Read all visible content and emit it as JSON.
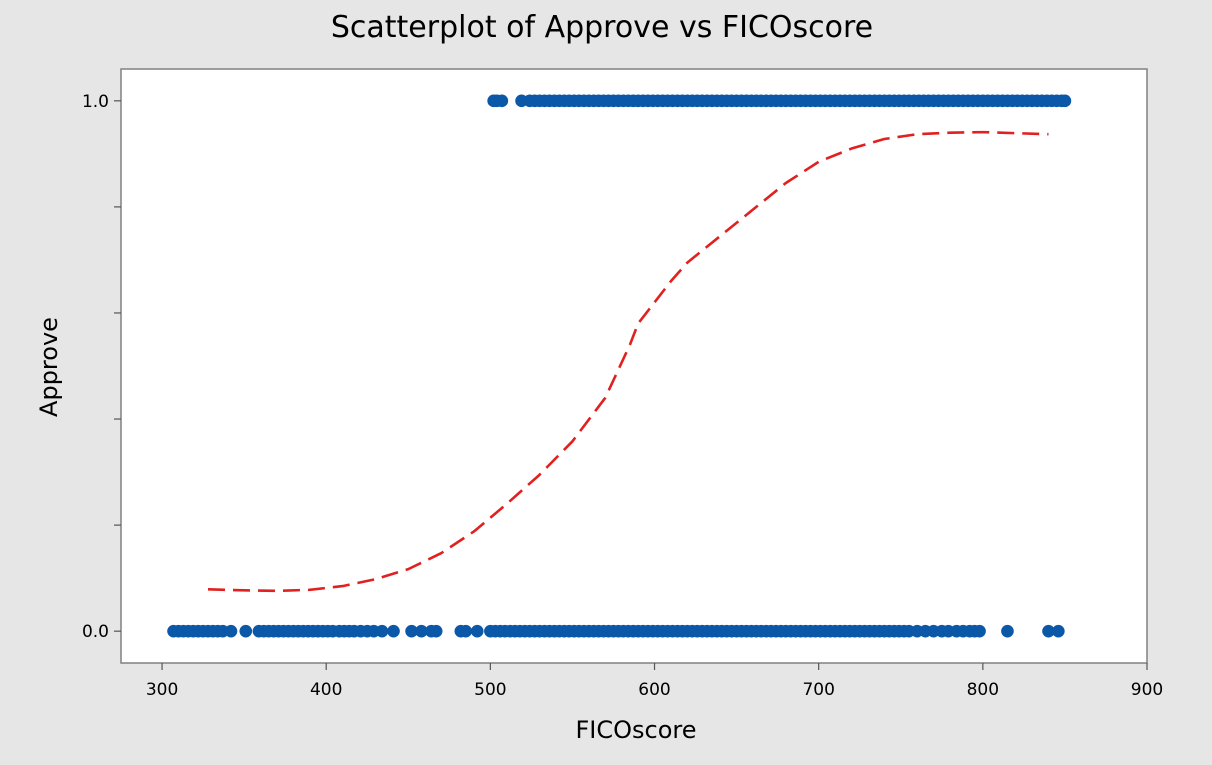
{
  "chart_data": {
    "type": "scatter",
    "title": "Scatterplot of Approve vs FICOscore",
    "xlabel": "FICOscore",
    "ylabel": "Approve",
    "xlim": [
      275,
      900
    ],
    "ylim": [
      -0.06,
      1.06
    ],
    "x_ticks": [
      300,
      400,
      500,
      600,
      700,
      800,
      900
    ],
    "x_tick_labels": [
      "300",
      "400",
      "500",
      "600",
      "700",
      "800",
      "900"
    ],
    "y_ticks": [
      0.0,
      0.2,
      0.4,
      0.6,
      0.8,
      1.0
    ],
    "y_tick_labels": [
      "0.0",
      "",
      "",
      "",
      "",
      "1.0"
    ],
    "grid": false,
    "legend": "none",
    "colors": {
      "points": "#0b57a8",
      "fit": "#e0211f",
      "plot_bg": "#ffffff",
      "page_bg": "#e6e6e6"
    },
    "series": [
      {
        "kind": "points",
        "y": 1,
        "x": [
          502,
          504,
          507,
          519,
          524,
          527,
          530,
          533,
          536,
          539,
          542,
          545,
          548,
          551,
          554,
          557,
          560,
          563,
          566,
          569,
          572,
          575,
          578,
          581,
          584,
          587,
          590,
          593,
          596,
          599,
          602,
          605,
          608,
          611,
          614,
          617,
          620,
          623,
          626,
          629,
          632,
          635,
          638,
          641,
          644,
          647,
          650,
          653,
          656,
          659,
          662,
          665,
          668,
          671,
          674,
          677,
          680,
          683,
          686,
          689,
          692,
          695,
          698,
          701,
          704,
          707,
          710,
          713,
          716,
          719,
          722,
          725,
          728,
          731,
          734,
          737,
          740,
          743,
          746,
          749,
          752,
          755,
          758,
          761,
          764,
          767,
          770,
          773,
          776,
          779,
          782,
          785,
          788,
          791,
          794,
          797,
          800,
          803,
          806,
          809,
          812,
          815,
          818,
          821,
          824,
          827,
          830,
          833,
          836,
          839,
          842,
          845,
          848,
          850
        ]
      },
      {
        "kind": "points",
        "y": 0,
        "x": [
          307,
          310,
          313,
          316,
          319,
          322,
          325,
          328,
          331,
          334,
          337,
          342,
          351,
          359,
          362,
          365,
          368,
          371,
          374,
          377,
          380,
          383,
          386,
          389,
          392,
          395,
          398,
          401,
          404,
          408,
          411,
          414,
          417,
          421,
          425,
          429,
          434,
          441,
          452,
          458,
          464,
          467,
          482,
          485,
          492,
          500,
          503,
          506,
          509,
          512,
          515,
          518,
          521,
          524,
          527,
          530,
          533,
          536,
          539,
          542,
          545,
          548,
          551,
          554,
          557,
          560,
          563,
          566,
          569,
          572,
          575,
          578,
          581,
          584,
          587,
          590,
          593,
          596,
          599,
          602,
          605,
          608,
          611,
          614,
          617,
          620,
          623,
          626,
          629,
          632,
          635,
          638,
          641,
          644,
          647,
          650,
          653,
          656,
          659,
          662,
          665,
          668,
          671,
          674,
          677,
          680,
          683,
          686,
          689,
          692,
          695,
          698,
          701,
          704,
          707,
          710,
          713,
          716,
          719,
          722,
          725,
          728,
          731,
          734,
          737,
          740,
          743,
          746,
          749,
          752,
          755,
          760,
          765,
          770,
          775,
          779,
          784,
          788,
          792,
          795,
          798,
          815,
          840,
          846
        ]
      },
      {
        "kind": "fit-line",
        "style": "dashed",
        "x": [
          328,
          350,
          370,
          390,
          410,
          430,
          450,
          470,
          490,
          510,
          530,
          550,
          570,
          585,
          590,
          600,
          610,
          620,
          640,
          660,
          680,
          700,
          720,
          740,
          760,
          780,
          800,
          820,
          840
        ],
        "y": [
          0.079,
          0.077,
          0.076,
          0.078,
          0.085,
          0.098,
          0.117,
          0.147,
          0.188,
          0.24,
          0.295,
          0.358,
          0.44,
          0.54,
          0.58,
          0.62,
          0.66,
          0.695,
          0.745,
          0.795,
          0.845,
          0.885,
          0.91,
          0.928,
          0.937,
          0.94,
          0.941,
          0.939,
          0.937
        ]
      }
    ]
  }
}
